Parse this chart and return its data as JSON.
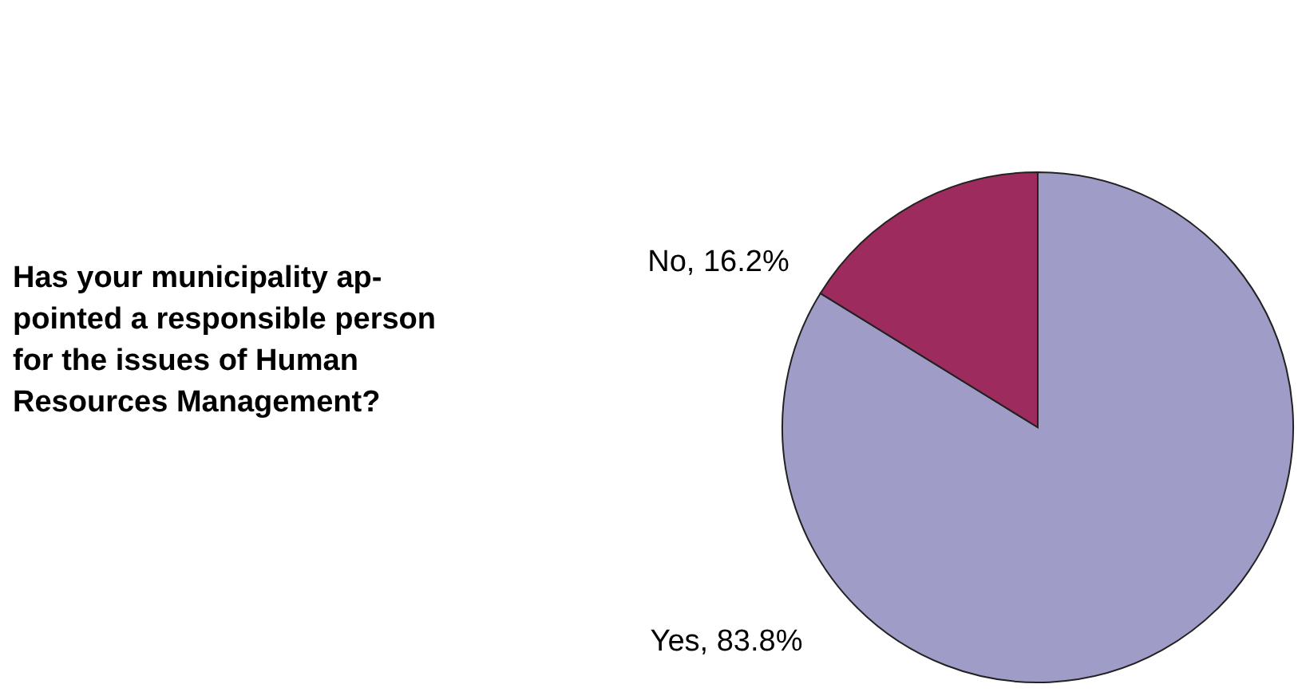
{
  "chart_data": {
    "type": "pie",
    "title": "Has your municipality ap-\npointed a responsible person\nfor the issues of Human\nResources Management?",
    "categories": [
      "Yes",
      "No"
    ],
    "values": [
      83.8,
      16.2
    ],
    "colors": [
      "#a09cc8",
      "#9e2b5e"
    ],
    "value_labels": [
      "83.8%",
      "16.2%"
    ]
  }
}
